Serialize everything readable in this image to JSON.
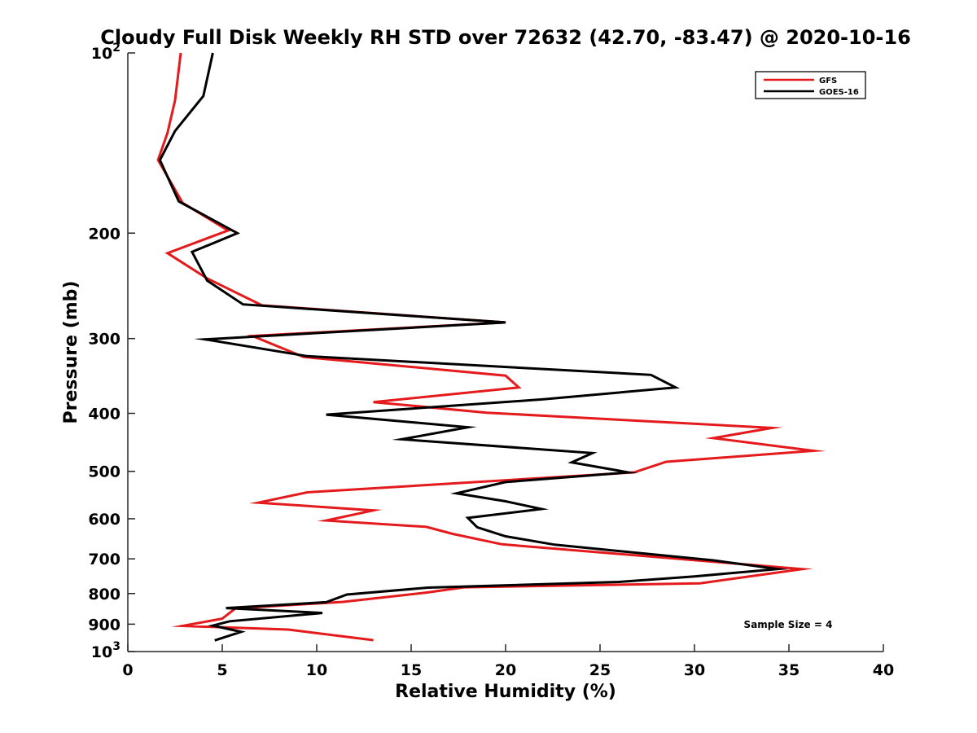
{
  "chart_data": {
    "type": "line",
    "title": "Cloudy Full Disk Weekly RH STD over 72632 (42.70, -83.47) @ 2020-10-16",
    "xlabel": "Relative Humidity (%)",
    "ylabel": "Pressure (mb)",
    "xlim": [
      0,
      40
    ],
    "ylim": [
      100,
      1000
    ],
    "y_scale": "log",
    "y_reversed": true,
    "grid": false,
    "legend_position": "top-right",
    "x_ticks": [
      0,
      5,
      10,
      15,
      20,
      25,
      30,
      35,
      40
    ],
    "y_ticks": [
      {
        "value": 100,
        "label": "10",
        "sup": "2"
      },
      {
        "value": 200,
        "label": "200",
        "sup": ""
      },
      {
        "value": 300,
        "label": "300",
        "sup": ""
      },
      {
        "value": 400,
        "label": "400",
        "sup": ""
      },
      {
        "value": 500,
        "label": "500",
        "sup": ""
      },
      {
        "value": 600,
        "label": "600",
        "sup": ""
      },
      {
        "value": 700,
        "label": "700",
        "sup": ""
      },
      {
        "value": 800,
        "label": "800",
        "sup": ""
      },
      {
        "value": 900,
        "label": "900",
        "sup": ""
      },
      {
        "value": 1000,
        "label": "10",
        "sup": "3"
      }
    ],
    "annotation": "Sample Size = 4",
    "series": [
      {
        "name": "GFS",
        "color": "#e41a1c",
        "points": [
          [
            2.8,
            100
          ],
          [
            2.5,
            120
          ],
          [
            2.1,
            136
          ],
          [
            1.6,
            151
          ],
          [
            2.9,
            178
          ],
          [
            5.3,
            198
          ],
          [
            2.1,
            216
          ],
          [
            4.2,
            238
          ],
          [
            7.1,
            264
          ],
          [
            20.0,
            282
          ],
          [
            6.6,
            297
          ],
          [
            9.3,
            322
          ],
          [
            20.0,
            346
          ],
          [
            20.7,
            362
          ],
          [
            13.0,
            383
          ],
          [
            19.0,
            399
          ],
          [
            34.1,
            423
          ],
          [
            31.0,
            440
          ],
          [
            36.3,
            462
          ],
          [
            28.5,
            482
          ],
          [
            26.8,
            502
          ],
          [
            9.5,
            542
          ],
          [
            6.9,
            564
          ],
          [
            13.0,
            581
          ],
          [
            10.5,
            604
          ],
          [
            15.8,
            619
          ],
          [
            17.2,
            636
          ],
          [
            19.8,
            662
          ],
          [
            35.7,
            728
          ],
          [
            33.3,
            746
          ],
          [
            30.3,
            769
          ],
          [
            17.8,
            781
          ],
          [
            15.8,
            797
          ],
          [
            11.4,
            826
          ],
          [
            5.7,
            847
          ],
          [
            5.0,
            881
          ],
          [
            2.9,
            906
          ],
          [
            8.5,
            919
          ],
          [
            13.0,
            957
          ]
        ]
      },
      {
        "name": "GOES-16",
        "color": "#000000",
        "points": [
          [
            4.5,
            100
          ],
          [
            4.0,
            118
          ],
          [
            2.5,
            135
          ],
          [
            1.7,
            151
          ],
          [
            2.7,
            177
          ],
          [
            5.8,
            200
          ],
          [
            3.4,
            215
          ],
          [
            4.2,
            240
          ],
          [
            6.1,
            263
          ],
          [
            20.0,
            282
          ],
          [
            4.1,
            301
          ],
          [
            9.5,
            321
          ],
          [
            27.7,
            345
          ],
          [
            29.0,
            362
          ],
          [
            22.0,
            379
          ],
          [
            10.5,
            402
          ],
          [
            18.0,
            422
          ],
          [
            14.5,
            442
          ],
          [
            24.6,
            466
          ],
          [
            23.5,
            483
          ],
          [
            26.5,
            502
          ],
          [
            20.0,
            521
          ],
          [
            17.4,
            544
          ],
          [
            20.0,
            561
          ],
          [
            21.9,
            578
          ],
          [
            18.0,
            598
          ],
          [
            18.5,
            620
          ],
          [
            20.0,
            642
          ],
          [
            22.6,
            663
          ],
          [
            31.0,
            704
          ],
          [
            34.4,
            728
          ],
          [
            30.0,
            749
          ],
          [
            26.0,
            765
          ],
          [
            15.9,
            782
          ],
          [
            11.6,
            803
          ],
          [
            10.5,
            827
          ],
          [
            5.2,
            846
          ],
          [
            10.3,
            862
          ],
          [
            5.4,
            890
          ],
          [
            4.5,
            905
          ],
          [
            6.0,
            927
          ],
          [
            4.6,
            958
          ]
        ]
      }
    ]
  }
}
